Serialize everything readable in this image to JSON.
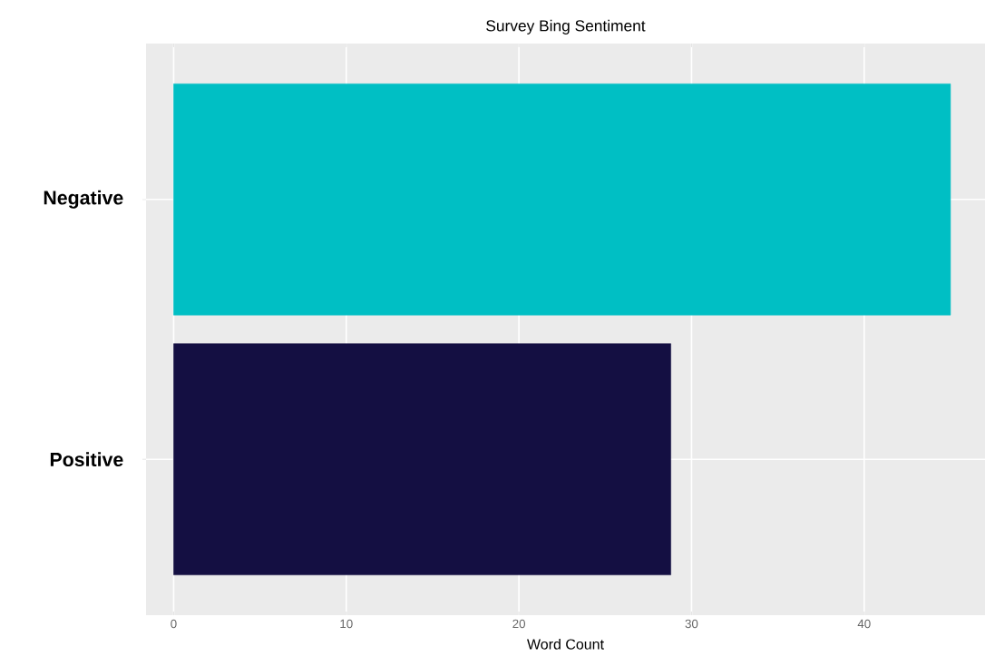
{
  "chart_data": {
    "type": "bar",
    "orientation": "horizontal",
    "title": "Survey Bing Sentiment",
    "xlabel": "Word Count",
    "categories": [
      "Negative",
      "Positive"
    ],
    "values": [
      45,
      28.8
    ],
    "colors": [
      "#00bfc4",
      "#140f42"
    ],
    "xlim": [
      -1.6,
      47
    ],
    "xticks": [
      0,
      10,
      20,
      30,
      40
    ],
    "grid": true
  }
}
